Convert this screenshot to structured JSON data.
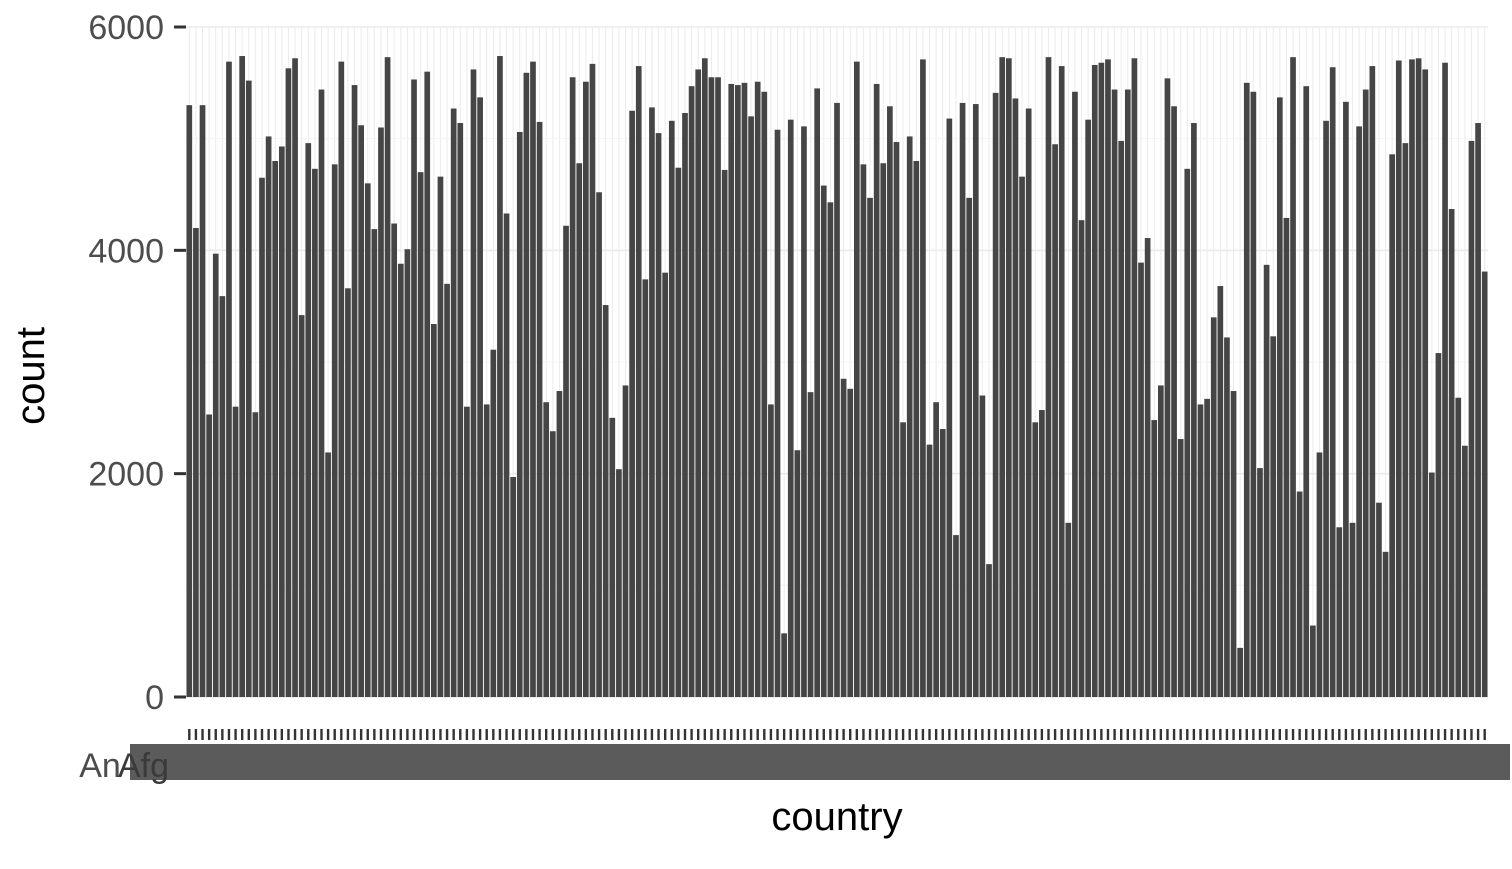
{
  "chart_data": {
    "type": "bar",
    "title": "",
    "xlabel": "country",
    "ylabel": "count",
    "ylim": [
      0,
      6000
    ],
    "yticks": [
      0,
      2000,
      4000,
      6000
    ],
    "ytick_labels": [
      "0",
      "2000",
      "4000",
      "6000"
    ],
    "grid": true,
    "legend": "none",
    "visible_tick_labels": [
      "Afg",
      "An"
    ],
    "x_tick_labels_note": "overlapping, illegible country-name tick labels; only fragments 'Afg' and 'An' are readable",
    "values": [
      5300,
      4200,
      5300,
      2530,
      3970,
      3590,
      5690,
      2600,
      5740,
      5520,
      2550,
      4650,
      5020,
      4800,
      4930,
      5630,
      5720,
      3420,
      4960,
      4730,
      5440,
      2190,
      4770,
      5690,
      3660,
      5480,
      5120,
      4600,
      4190,
      5100,
      5730,
      4240,
      3880,
      4010,
      5530,
      4700,
      5600,
      3340,
      4660,
      3700,
      5270,
      5140,
      2600,
      5620,
      5370,
      2620,
      3110,
      5740,
      4330,
      1970,
      5060,
      5590,
      5690,
      5150,
      2640,
      2380,
      2740,
      4220,
      5550,
      4780,
      5510,
      5670,
      4520,
      3510,
      2500,
      2040,
      2790,
      5250,
      5650,
      3740,
      5280,
      5050,
      3800,
      5160,
      4740,
      5230,
      5470,
      5620,
      5720,
      5550,
      5550,
      4720,
      5490,
      5480,
      5500,
      5200,
      5510,
      5420,
      2620,
      5080,
      570,
      5170,
      2210,
      5110,
      2730,
      5450,
      4580,
      4430,
      5320,
      2850,
      2760,
      5690,
      4770,
      4470,
      5490,
      4780,
      5290,
      4970,
      2460,
      5020,
      4800,
      5710,
      2260,
      2640,
      2400,
      5180,
      1450,
      5320,
      4470,
      5310,
      2700,
      1190,
      5410,
      5730,
      5720,
      5360,
      4660,
      5270,
      2460,
      2570,
      5730,
      4950,
      5650,
      1560,
      5420,
      4270,
      5170,
      5660,
      5680,
      5710,
      5440,
      4980,
      5440,
      5720,
      3890,
      4110,
      2480,
      2790,
      5540,
      5290,
      2310,
      4730,
      5140,
      2620,
      2670,
      3400,
      3680,
      3220,
      2740,
      440,
      5500,
      5420,
      2050,
      3870,
      3230,
      5370,
      4290,
      5730,
      1840,
      5470,
      640,
      2190,
      5160,
      5640,
      1520,
      5330,
      1560,
      5110,
      5440,
      5650,
      1740,
      1300,
      4860,
      5700,
      4960,
      5710,
      5720,
      5620,
      2010,
      3080,
      5680,
      4370,
      2680,
      2250,
      4980,
      5140,
      3810
    ]
  }
}
